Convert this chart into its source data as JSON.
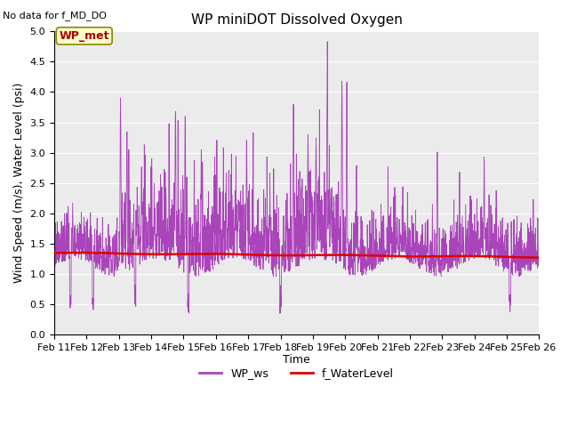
{
  "title": "WP miniDOT Dissolved Oxygen",
  "top_left_text": "No data for f_MD_DO",
  "xlabel": "Time",
  "ylabel": "Wind Speed (m/s), Water Level (psi)",
  "ylim": [
    0.0,
    5.0
  ],
  "yticks": [
    0.0,
    0.5,
    1.0,
    1.5,
    2.0,
    2.5,
    3.0,
    3.5,
    4.0,
    4.5,
    5.0
  ],
  "xtick_labels": [
    "Feb 11",
    "Feb 12",
    "Feb 13",
    "Feb 14",
    "Feb 15",
    "Feb 16",
    "Feb 17",
    "Feb 18",
    "Feb 19",
    "Feb 20",
    "Feb 21",
    "Feb 22",
    "Feb 23",
    "Feb 24",
    "Feb 25",
    "Feb 26"
  ],
  "num_days": 15,
  "wp_ws_color": "#AA44BB",
  "f_waterlevel_color": "#DD0000",
  "legend_ws_label": "WP_ws",
  "legend_wl_label": "f_WaterLevel",
  "annotation_label": "WP_met",
  "annotation_color": "#AA0000",
  "annotation_bg": "#FFFFCC",
  "annotation_border": "#888800",
  "background_color": "#EBEBEB",
  "title_fontsize": 11,
  "axis_fontsize": 9,
  "tick_fontsize": 8,
  "legend_fontsize": 9
}
